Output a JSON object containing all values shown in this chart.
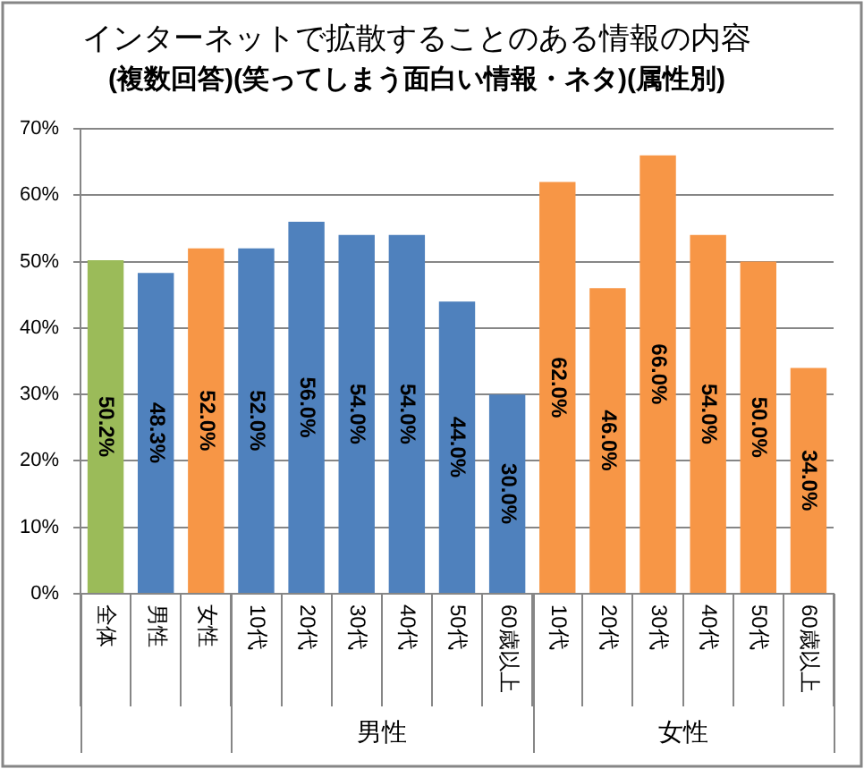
{
  "chart_data": {
    "type": "bar",
    "title": "インターネットで拡散することのある情報の内容",
    "subtitle": "(複数回答)(笑ってしまう面白い情報・ネタ)(属性別)",
    "categories": [
      "全体",
      "男性",
      "女性",
      "10代",
      "20代",
      "30代",
      "40代",
      "50代",
      "60歳以上",
      "10代",
      "20代",
      "30代",
      "40代",
      "50代",
      "60歳以上"
    ],
    "values": [
      50.2,
      48.3,
      52.0,
      52.0,
      56.0,
      54.0,
      54.0,
      44.0,
      30.0,
      62.0,
      46.0,
      66.0,
      54.0,
      50.0,
      34.0
    ],
    "colors": [
      "#9bbb59",
      "#4f81bd",
      "#f79646",
      "#4f81bd",
      "#4f81bd",
      "#4f81bd",
      "#4f81bd",
      "#4f81bd",
      "#4f81bd",
      "#f79646",
      "#f79646",
      "#f79646",
      "#f79646",
      "#f79646",
      "#f79646"
    ],
    "value_labels": [
      "50.2%",
      "48.3%",
      "52.0%",
      "52.0%",
      "56.0%",
      "54.0%",
      "54.0%",
      "44.0%",
      "30.0%",
      "62.0%",
      "46.0%",
      "66.0%",
      "54.0%",
      "50.0%",
      "34.0%"
    ],
    "ylim": [
      0,
      70
    ],
    "yticks": [
      {
        "value": 0,
        "label": "0%"
      },
      {
        "value": 10,
        "label": "10%"
      },
      {
        "value": 20,
        "label": "20%"
      },
      {
        "value": 30,
        "label": "30%"
      },
      {
        "value": 40,
        "label": "40%"
      },
      {
        "value": 50,
        "label": "50%"
      },
      {
        "value": 60,
        "label": "60%"
      },
      {
        "value": 70,
        "label": "70%"
      }
    ],
    "grid": "y",
    "legend": false,
    "annotations": [
      "男性",
      "女性"
    ]
  }
}
